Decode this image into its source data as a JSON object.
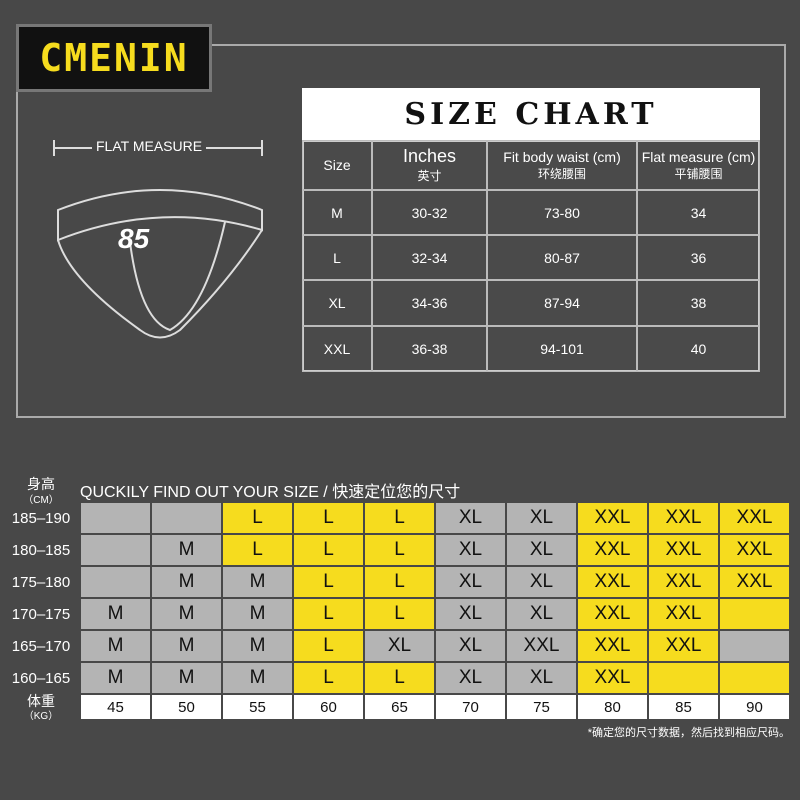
{
  "brand": "CMENIN",
  "flat_measure": "FLAT MEASURE",
  "badge": "85",
  "size_chart": {
    "title": "SIZE CHART",
    "header": [
      [
        "Size"
      ],
      [
        "Inches",
        "英寸"
      ],
      [
        "Fit body waist (cm)",
        "环绕腰围"
      ],
      [
        "Flat measure (cm)",
        "平铺腰围"
      ]
    ],
    "rows": [
      [
        "M",
        "30-32",
        "73-80",
        "34"
      ],
      [
        "L",
        "32-34",
        "80-87",
        "36"
      ],
      [
        "XL",
        "34-36",
        "87-94",
        "38"
      ],
      [
        "XXL",
        "36-38",
        "94-101",
        "40"
      ]
    ]
  },
  "finder": {
    "height_label": "身高",
    "height_unit": "（CM）",
    "title": "QUCKILY FIND OUT YOUR SIZE / 快速定位您的尺寸",
    "palette": {
      "g": "#b4b4b4",
      "y": "#f6dc1e"
    },
    "rows": [
      {
        "height": "185–190",
        "cells": [
          null,
          null,
          "L",
          "L",
          "L",
          "XL",
          "XL",
          "XXL",
          "XXL",
          "XXL"
        ],
        "shade": "ggyyyggyyy"
      },
      {
        "height": "180–185",
        "cells": [
          null,
          "M",
          "L",
          "L",
          "L",
          "XL",
          "XL",
          "XXL",
          "XXL",
          "XXL"
        ],
        "shade": "ggyyyggyyy"
      },
      {
        "height": "175–180",
        "cells": [
          null,
          "M",
          "M",
          "L",
          "L",
          "XL",
          "XL",
          "XXL",
          "XXL",
          "XXL"
        ],
        "shade": "gggyyggyyy"
      },
      {
        "height": "170–175",
        "cells": [
          "M",
          "M",
          "M",
          "L",
          "L",
          "XL",
          "XL",
          "XXL",
          "XXL",
          null
        ],
        "shade": "gggyyggyyy"
      },
      {
        "height": "165–170",
        "cells": [
          "M",
          "M",
          "M",
          "L",
          "XL",
          "XL",
          "XXL",
          "XXL",
          "XXL",
          null
        ],
        "shade": "gggygggyyg"
      },
      {
        "height": "160–165",
        "cells": [
          "M",
          "M",
          "M",
          "L",
          "L",
          "XL",
          "XL",
          "XXL",
          null,
          null
        ],
        "shade": "gggyyggyyy"
      }
    ],
    "weight_label": "体重",
    "weight_unit": "（KG）",
    "weights": [
      "45",
      "50",
      "55",
      "60",
      "65",
      "70",
      "75",
      "80",
      "85",
      "90"
    ],
    "note": "*确定您的尺寸数据，然后找到相应尺码。"
  }
}
